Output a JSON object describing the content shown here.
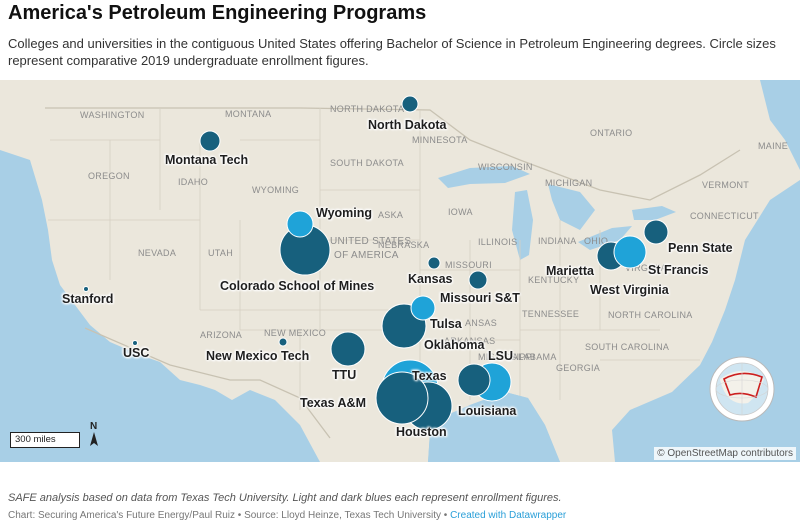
{
  "title": "America's Petroleum Engineering Programs",
  "subtitle": "Colleges and universities in the contiguous United States offering Bachelor of Science in Petroleum Engineering degrees. Circle sizes represent comparative 2019 undergraduate enrollment figures.",
  "colors": {
    "light_blue": "#1fa3d8",
    "dark_blue": "#17607d",
    "water": "#a8cfe6",
    "land": "#ebe7dc"
  },
  "programs": [
    {
      "label": "North Dakota"
    },
    {
      "label": "Montana Tech"
    },
    {
      "label": "Wyoming"
    },
    {
      "label": "Colorado School of Mines"
    },
    {
      "label": "Kansas"
    },
    {
      "label": "Missouri S&T"
    },
    {
      "label": "Marietta"
    },
    {
      "label": "Penn State"
    },
    {
      "label": "St Francis"
    },
    {
      "label": "West Virginia"
    },
    {
      "label": "Stanford"
    },
    {
      "label": "USC"
    },
    {
      "label": "Tulsa"
    },
    {
      "label": "Oklahoma"
    },
    {
      "label": "New Mexico Tech"
    },
    {
      "label": "TTU"
    },
    {
      "label": "LSU"
    },
    {
      "label": "Texas"
    },
    {
      "label": "Texas A&M"
    },
    {
      "label": "Louisiana"
    },
    {
      "label": "Houston"
    }
  ],
  "basemap_labels": [
    "WASHINGTON",
    "MONTANA",
    "NORTH DAKOTA",
    "MINNESOTA",
    "OREGON",
    "IDAHO",
    "SOUTH DAKOTA",
    "WISCONSIN",
    "MICHIGAN",
    "WYOMING",
    "IOWA",
    "NEVADA",
    "UTAH",
    "UNITED STATES",
    "OF AMERICA",
    "MISSOURI",
    "INDIANA",
    "OHIO",
    "ILLINOIS",
    "KENTUCKY",
    "VIRGINIA",
    "TENNESSEE",
    "NORTH CAROLINA",
    "SOUTH CAROLINA",
    "GEORGIA",
    "ARIZONA",
    "NEW MEXICO",
    "ARKANSAS",
    "MISSISSIPPI",
    "ALABAMA",
    "MAINE",
    "VERMONT",
    "CONNECTICUT",
    "NEBRASKA",
    "ONTARIO",
    "ASKA",
    "ANSAS"
  ],
  "scale_label": "300 miles",
  "north_label": "N",
  "map_credit": "© OpenStreetMap contributors",
  "footnote": "SAFE analysis based on data from Texas Tech University. Light and dark blues each represent enrollment figures.",
  "byline": "Chart: Securing America's Future Energy/Paul Ruiz • Source: Lloyd Heinze, Texas Tech University • ",
  "byline_link": "Created with Datawrapper"
}
